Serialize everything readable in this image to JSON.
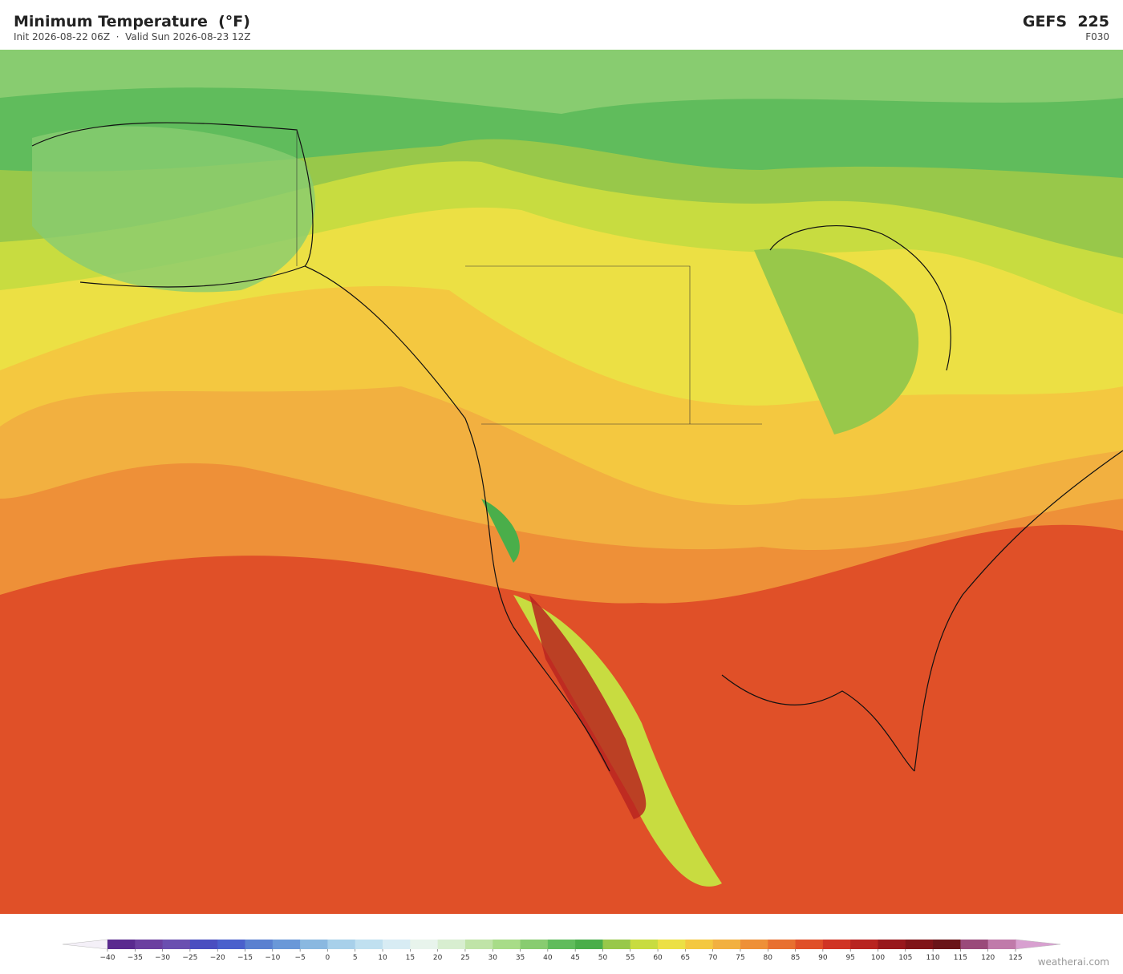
{
  "header": {
    "title": "Minimum Temperature  (°F)",
    "subtitle": "Init 2026-08-22 06Z  ·  Valid Sun 2026-08-23 12Z",
    "model": "GEFS  225",
    "forecast_hour": "F030"
  },
  "colorbar": {
    "ticks": [
      {
        "value": -40,
        "label": "−40"
      },
      {
        "value": -35,
        "label": "−35"
      },
      {
        "value": -30,
        "label": "−30"
      },
      {
        "value": -25,
        "label": "−25"
      },
      {
        "value": -20,
        "label": "−20"
      },
      {
        "value": -15,
        "label": "−15"
      },
      {
        "value": -10,
        "label": "−10"
      },
      {
        "value": -5,
        "label": "−5"
      },
      0,
      5,
      10,
      15,
      20,
      25,
      30,
      35,
      40,
      45,
      50,
      55,
      60,
      65,
      70,
      75,
      80,
      85,
      90,
      95,
      100,
      105,
      110,
      115,
      120,
      125
    ],
    "colors": [
      "#5a2a8f",
      "#6b3fa0",
      "#6a4fb0",
      "#4a4ec0",
      "#4a60cc",
      "#5a80d0",
      "#6a98d8",
      "#8ab8e0",
      "#a8d0ea",
      "#c0e0f0",
      "#d8ecf4",
      "#e8f4ec",
      "#d8eed0",
      "#c0e4a8",
      "#a8dc88",
      "#88cc70",
      "#60bc5c",
      "#4aae4a",
      "#98c84a",
      "#c8dc40",
      "#ece044",
      "#f4c840",
      "#f2b040",
      "#ee9038",
      "#e87030",
      "#e05028",
      "#d03424",
      "#b82420",
      "#98181c",
      "#801418",
      "#6a1418",
      "#9a4a7a",
      "#c07aaa"
    ],
    "under_color": "#f4f0f8",
    "over_color": "#d8a0d0"
  },
  "footer": {
    "credit": "weatherai.com"
  }
}
